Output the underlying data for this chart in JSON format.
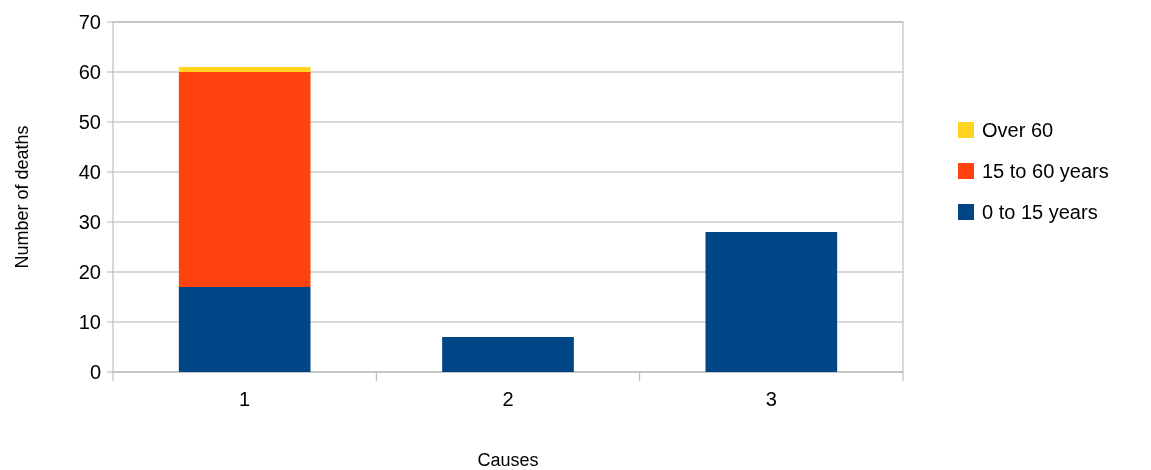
{
  "chart_data": {
    "type": "bar",
    "stacked": true,
    "xlabel": "Causes",
    "ylabel": "Number of deaths",
    "categories": [
      "1",
      "2",
      "3"
    ],
    "series": [
      {
        "name": "0 to 15 years",
        "color": "#004586",
        "values": [
          17,
          7,
          28
        ]
      },
      {
        "name": "15 to 60 years",
        "color": "#ff420e",
        "values": [
          43,
          0,
          0
        ]
      },
      {
        "name": "Over 60",
        "color": "#ffd320",
        "values": [
          1,
          0,
          0
        ]
      }
    ],
    "ylim": [
      0,
      70
    ],
    "yticks": [
      0,
      10,
      20,
      30,
      40,
      50,
      60,
      70
    ],
    "grid": "y",
    "legend": "right"
  }
}
